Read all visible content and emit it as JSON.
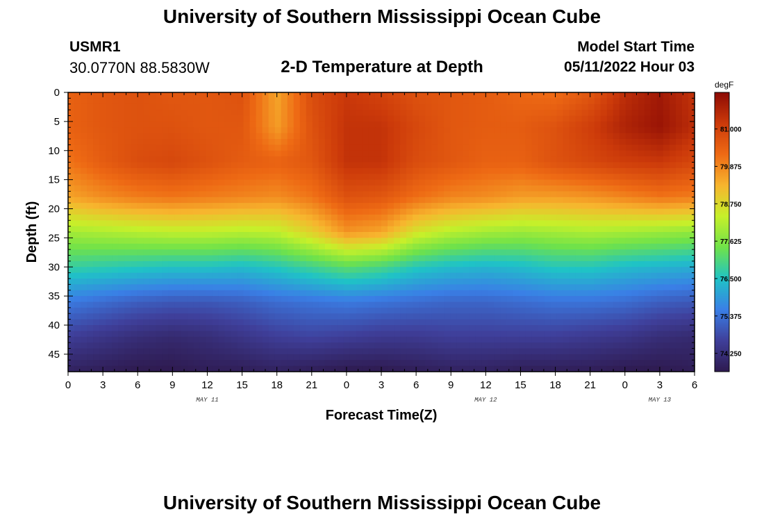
{
  "header": {
    "title": "University of Southern Mississippi Ocean Cube",
    "station_id": "USMR1",
    "coordinates": "30.0770N  88.5830W",
    "chart_title": "2-D Temperature at Depth",
    "model_start_label": "Model Start Time",
    "model_start_value": "05/11/2022 Hour 03"
  },
  "footer": {
    "title": "University of Southern Mississippi Ocean Cube"
  },
  "colors": {
    "scale": [
      "#2e1a4f",
      "#3f3f9a",
      "#3a7fe6",
      "#1fc3c6",
      "#6fe24a",
      "#c6f02a",
      "#f7b52e",
      "#ee6a14",
      "#cc3a0a",
      "#8c0a04"
    ]
  },
  "chart_data": {
    "type": "heatmap",
    "title": "2-D Temperature at Depth",
    "xlabel": "Forecast Time(Z)",
    "ylabel": "Depth (ft)",
    "x_ticks": [
      "0",
      "3",
      "6",
      "9",
      "12",
      "15",
      "18",
      "21",
      "0",
      "3",
      "6",
      "9",
      "12",
      "15",
      "18",
      "21",
      "0",
      "3",
      "6"
    ],
    "x_hours": [
      0,
      3,
      6,
      9,
      12,
      15,
      18,
      21,
      24,
      27,
      30,
      33,
      36,
      39,
      42,
      45,
      48,
      51,
      54
    ],
    "date_labels": [
      {
        "label": "MAY 11",
        "hour": 12
      },
      {
        "label": "MAY 12",
        "hour": 36
      },
      {
        "label": "MAY 13",
        "hour": 51
      }
    ],
    "y_ticks": [
      "0",
      "5",
      "10",
      "15",
      "20",
      "25",
      "30",
      "35",
      "40",
      "45"
    ],
    "y_values": [
      0,
      5,
      10,
      15,
      20,
      25,
      30,
      35,
      40,
      45
    ],
    "xlim": [
      0,
      54
    ],
    "ylim": [
      0,
      48
    ],
    "colorbar": {
      "unit": "degF",
      "labels": [
        "81.000",
        "79.875",
        "78.750",
        "77.625",
        "76.500",
        "75.375",
        "74.250"
      ],
      "values": [
        81.0,
        79.875,
        78.75,
        77.625,
        76.5,
        75.375,
        74.25
      ],
      "range": [
        73.7,
        82.1
      ]
    },
    "grid": {
      "depths": [
        0,
        6,
        12,
        18,
        24,
        30,
        36,
        42,
        48
      ],
      "hours": [
        0,
        3,
        6,
        9,
        12,
        15,
        18,
        21,
        24,
        27,
        30,
        33,
        36,
        39,
        42,
        45,
        48,
        51,
        54
      ],
      "temperature": [
        [
          80.4,
          80.6,
          80.7,
          80.6,
          80.6,
          80.7,
          79.5,
          80.8,
          81.2,
          81.0,
          80.7,
          80.6,
          80.5,
          80.3,
          80.2,
          80.6,
          81.4,
          81.8,
          81.3
        ],
        [
          80.4,
          80.6,
          80.7,
          80.7,
          80.6,
          80.6,
          79.6,
          80.7,
          81.3,
          81.3,
          80.9,
          80.6,
          80.5,
          80.5,
          80.7,
          81.1,
          81.6,
          81.9,
          81.4
        ],
        [
          80.1,
          80.5,
          80.8,
          80.9,
          80.7,
          80.5,
          80.4,
          80.6,
          81.3,
          81.3,
          80.8,
          80.6,
          80.4,
          80.4,
          80.7,
          80.9,
          81.1,
          81.2,
          80.9
        ],
        [
          79.5,
          79.8,
          80.0,
          80.1,
          80.0,
          79.9,
          79.8,
          80.1,
          80.7,
          80.6,
          80.2,
          79.9,
          79.8,
          79.6,
          79.6,
          79.7,
          79.9,
          80.1,
          80.0
        ],
        [
          78.0,
          78.1,
          78.2,
          78.3,
          78.3,
          78.2,
          78.3,
          78.9,
          79.7,
          79.5,
          78.6,
          78.2,
          78.0,
          77.9,
          78.0,
          78.1,
          78.0,
          77.9,
          77.8
        ],
        [
          76.8,
          76.7,
          76.6,
          76.5,
          76.5,
          76.4,
          76.6,
          76.9,
          77.2,
          77.0,
          76.6,
          76.4,
          76.3,
          76.4,
          76.6,
          76.6,
          76.4,
          76.3,
          76.2
        ],
        [
          75.5,
          75.3,
          75.1,
          75.0,
          75.0,
          75.1,
          75.3,
          75.4,
          75.5,
          75.4,
          75.3,
          75.2,
          75.2,
          75.3,
          75.4,
          75.4,
          75.3,
          75.1,
          75.0
        ],
        [
          74.6,
          74.4,
          74.2,
          74.1,
          74.2,
          74.4,
          74.6,
          74.7,
          74.6,
          74.5,
          74.5,
          74.6,
          74.6,
          74.6,
          74.6,
          74.5,
          74.4,
          74.2,
          74.1
        ],
        [
          73.9,
          73.8,
          73.7,
          73.7,
          73.8,
          73.8,
          73.9,
          73.8,
          73.7,
          73.7,
          73.8,
          73.9,
          73.9,
          73.8,
          73.8,
          73.8,
          73.7,
          73.7,
          73.8
        ]
      ]
    }
  }
}
